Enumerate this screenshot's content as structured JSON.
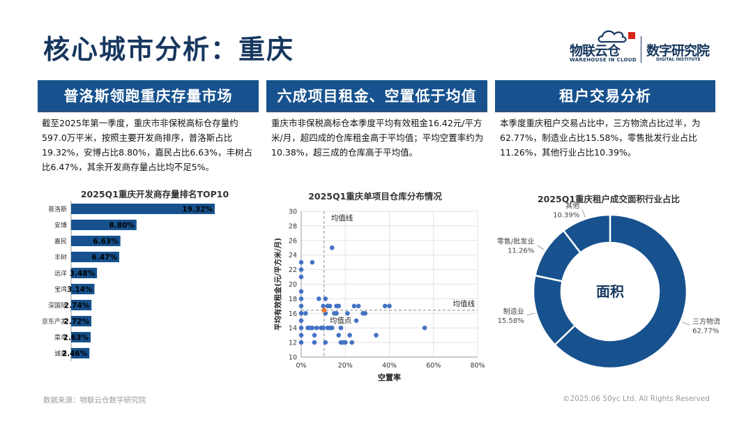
{
  "page": {
    "title": "核心城市分析：重庆"
  },
  "logo": {
    "brand": "物联云仓",
    "brand_en": "WAREHOUSE IN CLOUD",
    "institute": "数字研究院",
    "institute_en": "DIGITAL INSTITUTE"
  },
  "sections": [
    {
      "title": "普洛斯领跑重庆存量市场",
      "body": "截至2025年第一季度，重庆市非保税高标仓存量约597.0万平米，按照主要开发商排序，普洛斯占比19.32%，安博占比8.80%，嘉民占比6.63%，丰树占比6.47%，其余开发商存量占比均不足5%。"
    },
    {
      "title": "六成项目租金、空置低于均值",
      "body": "重庆市非保税高标仓本季度平均有效租金16.42元/平方米/月，超四成的仓库租金高于平均值；平均空置率约为10.38%，超三成的仓库高于平均值。"
    },
    {
      "title": "租户交易分析",
      "body": "本季度重庆租户交易占比中，三方物流占比过半，为62.77%，制造业占比15.58%，零售批发行业占比11.26%，其他行业占比10.39%。"
    }
  ],
  "footer": {
    "source": "数据来源：物联云仓数字研究院",
    "copyright": "©2025.06 50yc Ltd. All Rights Reserved"
  },
  "colors": {
    "primary": "#17528e",
    "title": "#17375e",
    "scatter_point": "#4472c4",
    "mean_point": "#ed7d31"
  },
  "chart_data": [
    {
      "type": "bar",
      "orientation": "horizontal",
      "title": "2025Q1重庆开发商存量排名TOP10",
      "categories": [
        "普洛斯",
        "安博",
        "嘉民",
        "丰树",
        "远洋",
        "宝湾",
        "深国际",
        "京东产发",
        "菜鸟",
        "诚通"
      ],
      "values": [
        19.32,
        8.8,
        6.63,
        6.47,
        3.48,
        3.14,
        2.74,
        2.72,
        2.63,
        2.46
      ],
      "labels": [
        "19.32%",
        "8.80%",
        "6.63%",
        "6.47%",
        "3.48%",
        "3.14%",
        "2.74%",
        "2.72%",
        "2.63%",
        "2.46%"
      ],
      "unit": "%",
      "color": "#17528e"
    },
    {
      "type": "scatter",
      "title": "2025Q1重庆单项目仓库分布情况",
      "xlabel": "空置率",
      "ylabel": "平均有效租金(元/平方米/月)",
      "xlim": [
        0,
        80
      ],
      "ylim": [
        10,
        30
      ],
      "xticks": [
        0,
        20,
        40,
        60,
        80
      ],
      "xtick_labels": [
        "0%",
        "20%",
        "40%",
        "60%",
        "80%"
      ],
      "yticks": [
        10,
        12,
        14,
        16,
        18,
        20,
        22,
        24,
        26,
        28,
        30
      ],
      "grid": true,
      "mean": {
        "x": 10.38,
        "y": 16.42,
        "point_label": "均值点",
        "vline_label": "均值线",
        "hline_label": "均值线"
      },
      "points": [
        {
          "x": 0,
          "y": 23
        },
        {
          "x": 0,
          "y": 22
        },
        {
          "x": 0,
          "y": 21
        },
        {
          "x": 0,
          "y": 19
        },
        {
          "x": 0,
          "y": 18
        },
        {
          "x": 0,
          "y": 17
        },
        {
          "x": 0,
          "y": 16
        },
        {
          "x": 0,
          "y": 15
        },
        {
          "x": 0,
          "y": 14
        },
        {
          "x": 0,
          "y": 13
        },
        {
          "x": 0,
          "y": 12
        },
        {
          "x": 0,
          "y": 16
        },
        {
          "x": 2,
          "y": 16
        },
        {
          "x": 3,
          "y": 14
        },
        {
          "x": 4,
          "y": 14
        },
        {
          "x": 5,
          "y": 23
        },
        {
          "x": 5,
          "y": 14
        },
        {
          "x": 6,
          "y": 13
        },
        {
          "x": 6,
          "y": 12
        },
        {
          "x": 7,
          "y": 14
        },
        {
          "x": 8,
          "y": 18
        },
        {
          "x": 9,
          "y": 14
        },
        {
          "x": 10,
          "y": 17
        },
        {
          "x": 10,
          "y": 14
        },
        {
          "x": 11,
          "y": 18
        },
        {
          "x": 11,
          "y": 16
        },
        {
          "x": 11,
          "y": 12
        },
        {
          "x": 12,
          "y": 17
        },
        {
          "x": 12,
          "y": 14
        },
        {
          "x": 13,
          "y": 17
        },
        {
          "x": 13,
          "y": 14
        },
        {
          "x": 14,
          "y": 14
        },
        {
          "x": 14,
          "y": 25
        },
        {
          "x": 15,
          "y": 16
        },
        {
          "x": 16,
          "y": 17
        },
        {
          "x": 16,
          "y": 16
        },
        {
          "x": 17,
          "y": 13
        },
        {
          "x": 17,
          "y": 17
        },
        {
          "x": 18,
          "y": 14
        },
        {
          "x": 18,
          "y": 12
        },
        {
          "x": 19,
          "y": 12
        },
        {
          "x": 20,
          "y": 12
        },
        {
          "x": 21,
          "y": 16
        },
        {
          "x": 22,
          "y": 13
        },
        {
          "x": 23,
          "y": 12
        },
        {
          "x": 24,
          "y": 17
        },
        {
          "x": 25,
          "y": 15
        },
        {
          "x": 26,
          "y": 17
        },
        {
          "x": 28,
          "y": 16
        },
        {
          "x": 29,
          "y": 16
        },
        {
          "x": 34,
          "y": 13
        },
        {
          "x": 38,
          "y": 17
        },
        {
          "x": 40,
          "y": 17
        },
        {
          "x": 56,
          "y": 14
        }
      ]
    },
    {
      "type": "pie",
      "donut": true,
      "title": "2025Q1重庆租户成交面积行业占比",
      "center_label": "面积",
      "slices": [
        {
          "name": "三方物流",
          "value": 62.77,
          "label": "62.77%"
        },
        {
          "name": "制造业",
          "value": 15.58,
          "label": "15.58%"
        },
        {
          "name": "零售/批发业",
          "value": 11.26,
          "label": "11.26%"
        },
        {
          "name": "其他",
          "value": 10.39,
          "label": "10.39%"
        }
      ],
      "color": "#17528e"
    }
  ]
}
